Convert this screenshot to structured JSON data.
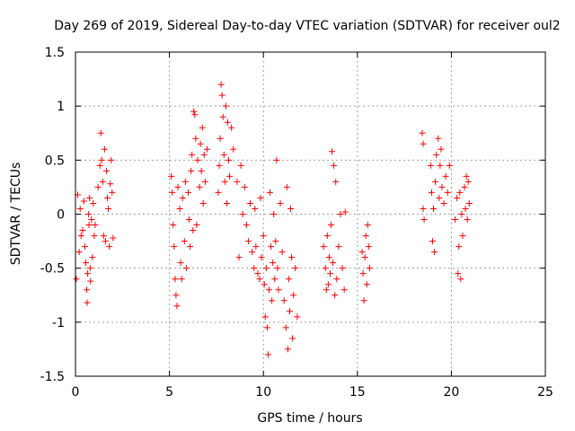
{
  "chart_data": {
    "type": "scatter",
    "title": "Day 269 of 2019, Sidereal Day-to-day VTEC variation (SDTVAR) for receiver oul2",
    "xlabel": "GPS time / hours",
    "ylabel": "SDTVAR / TECUs",
    "xlim": [
      0,
      25
    ],
    "ylim": [
      -1.5,
      1.5
    ],
    "xticks": [
      0,
      5,
      10,
      15,
      20,
      25
    ],
    "yticks": [
      -1.5,
      -1,
      -0.5,
      0,
      0.5,
      1,
      1.5
    ],
    "xtick_labels": [
      "0",
      "5",
      "10",
      "15",
      "20",
      "25"
    ],
    "ytick_labels": [
      "-1.5",
      "-1",
      "-0.5",
      "0",
      "0.5",
      "1",
      "1.5"
    ],
    "grid": true,
    "marker": "plus",
    "color": "#ff0000",
    "series": [
      {
        "name": "SDTVAR",
        "points": [
          [
            0.05,
            -0.6
          ],
          [
            0.12,
            0.18
          ],
          [
            0.2,
            -0.35
          ],
          [
            0.25,
            0.05
          ],
          [
            0.3,
            -0.2
          ],
          [
            0.38,
            -0.15
          ],
          [
            0.45,
            0.12
          ],
          [
            0.5,
            -0.3
          ],
          [
            0.55,
            -0.45
          ],
          [
            0.6,
            -0.7
          ],
          [
            0.62,
            -0.82
          ],
          [
            0.65,
            -0.55
          ],
          [
            0.7,
            0.0
          ],
          [
            0.72,
            -0.1
          ],
          [
            0.75,
            0.15
          ],
          [
            0.78,
            -0.5
          ],
          [
            0.8,
            -0.62
          ],
          [
            0.85,
            -0.05
          ],
          [
            0.9,
            -0.4
          ],
          [
            0.95,
            0.1
          ],
          [
            1.0,
            -0.2
          ],
          [
            1.05,
            -0.1
          ],
          [
            1.2,
            0.25
          ],
          [
            1.3,
            0.45
          ],
          [
            1.35,
            0.75
          ],
          [
            1.4,
            0.5
          ],
          [
            1.45,
            0.3
          ],
          [
            1.5,
            -0.2
          ],
          [
            1.55,
            0.6
          ],
          [
            1.6,
            -0.25
          ],
          [
            1.65,
            0.4
          ],
          [
            1.7,
            0.15
          ],
          [
            1.75,
            0.05
          ],
          [
            1.8,
            -0.3
          ],
          [
            1.85,
            0.28
          ],
          [
            1.9,
            0.5
          ],
          [
            1.95,
            0.2
          ],
          [
            2.0,
            -0.22
          ],
          [
            5.1,
            0.35
          ],
          [
            5.15,
            0.2
          ],
          [
            5.2,
            -0.1
          ],
          [
            5.25,
            -0.3
          ],
          [
            5.3,
            -0.6
          ],
          [
            5.35,
            -0.75
          ],
          [
            5.4,
            -0.85
          ],
          [
            5.45,
            0.25
          ],
          [
            5.55,
            0.05
          ],
          [
            5.6,
            -0.45
          ],
          [
            5.65,
            -0.6
          ],
          [
            5.7,
            0.15
          ],
          [
            5.8,
            -0.25
          ],
          [
            5.85,
            0.3
          ],
          [
            5.9,
            -0.5
          ],
          [
            6.0,
            0.2
          ],
          [
            6.05,
            -0.05
          ],
          [
            6.1,
            -0.3
          ],
          [
            6.15,
            0.4
          ],
          [
            6.2,
            0.55
          ],
          [
            6.25,
            -0.15
          ],
          [
            6.3,
            0.95
          ],
          [
            6.35,
            0.92
          ],
          [
            6.4,
            0.7
          ],
          [
            6.45,
            -0.1
          ],
          [
            6.5,
            0.5
          ],
          [
            6.6,
            0.25
          ],
          [
            6.65,
            0.65
          ],
          [
            6.7,
            0.4
          ],
          [
            6.75,
            0.8
          ],
          [
            6.8,
            0.1
          ],
          [
            6.85,
            0.55
          ],
          [
            6.9,
            0.3
          ],
          [
            7.0,
            0.6
          ],
          [
            7.6,
            0.2
          ],
          [
            7.65,
            0.45
          ],
          [
            7.7,
            0.7
          ],
          [
            7.75,
            1.2
          ],
          [
            7.8,
            1.1
          ],
          [
            7.85,
            0.9
          ],
          [
            7.9,
            0.55
          ],
          [
            7.95,
            0.3
          ],
          [
            8.0,
            1.0
          ],
          [
            8.05,
            0.1
          ],
          [
            8.1,
            0.85
          ],
          [
            8.15,
            0.5
          ],
          [
            8.2,
            0.35
          ],
          [
            8.3,
            0.8
          ],
          [
            8.4,
            0.6
          ],
          [
            8.6,
            0.3
          ],
          [
            8.7,
            -0.4
          ],
          [
            8.8,
            0.45
          ],
          [
            8.9,
            0.0
          ],
          [
            9.0,
            0.25
          ],
          [
            9.1,
            -0.1
          ],
          [
            9.2,
            -0.25
          ],
          [
            9.3,
            0.1
          ],
          [
            9.4,
            -0.35
          ],
          [
            9.5,
            -0.5
          ],
          [
            9.55,
            0.05
          ],
          [
            9.6,
            -0.3
          ],
          [
            9.7,
            -0.55
          ],
          [
            9.8,
            -0.6
          ],
          [
            9.85,
            0.15
          ],
          [
            9.9,
            -0.4
          ],
          [
            10.0,
            -0.2
          ],
          [
            10.05,
            -0.65
          ],
          [
            10.1,
            -0.95
          ],
          [
            10.15,
            -0.5
          ],
          [
            10.2,
            -1.05
          ],
          [
            10.25,
            -1.3
          ],
          [
            10.3,
            -0.7
          ],
          [
            10.35,
            0.2
          ],
          [
            10.4,
            -0.3
          ],
          [
            10.45,
            -0.8
          ],
          [
            10.5,
            -0.45
          ],
          [
            10.55,
            0.0
          ],
          [
            10.6,
            -0.6
          ],
          [
            10.65,
            -0.25
          ],
          [
            10.7,
            0.5
          ],
          [
            10.75,
            -0.5
          ],
          [
            10.8,
            -0.7
          ],
          [
            10.9,
            0.1
          ],
          [
            11.0,
            -0.35
          ],
          [
            11.1,
            -0.8
          ],
          [
            11.2,
            -1.05
          ],
          [
            11.25,
            0.25
          ],
          [
            11.3,
            -1.25
          ],
          [
            11.35,
            -0.6
          ],
          [
            11.4,
            -0.9
          ],
          [
            11.45,
            0.05
          ],
          [
            11.5,
            -0.4
          ],
          [
            11.55,
            -1.15
          ],
          [
            11.6,
            -0.75
          ],
          [
            11.7,
            -0.5
          ],
          [
            11.8,
            -0.95
          ],
          [
            13.2,
            -0.3
          ],
          [
            13.3,
            -0.5
          ],
          [
            13.35,
            -0.7
          ],
          [
            13.4,
            -0.2
          ],
          [
            13.45,
            -0.65
          ],
          [
            13.5,
            -0.4
          ],
          [
            13.55,
            -0.55
          ],
          [
            13.6,
            -0.1
          ],
          [
            13.65,
            0.58
          ],
          [
            13.7,
            -0.45
          ],
          [
            13.75,
            0.45
          ],
          [
            13.8,
            -0.75
          ],
          [
            13.85,
            0.3
          ],
          [
            13.9,
            -0.6
          ],
          [
            14.0,
            -0.3
          ],
          [
            14.1,
            0.0
          ],
          [
            14.2,
            -0.5
          ],
          [
            14.3,
            -0.7
          ],
          [
            14.35,
            0.02
          ],
          [
            15.25,
            -0.35
          ],
          [
            15.3,
            -0.55
          ],
          [
            15.35,
            -0.8
          ],
          [
            15.4,
            -0.4
          ],
          [
            15.45,
            -0.2
          ],
          [
            15.5,
            -0.65
          ],
          [
            15.55,
            -0.1
          ],
          [
            15.6,
            -0.3
          ],
          [
            15.65,
            -0.5
          ],
          [
            18.45,
            0.75
          ],
          [
            18.5,
            0.65
          ],
          [
            18.5,
            0.05
          ],
          [
            18.55,
            -0.05
          ],
          [
            18.9,
            0.45
          ],
          [
            18.95,
            0.2
          ],
          [
            19.0,
            -0.25
          ],
          [
            19.05,
            0.05
          ],
          [
            19.1,
            -0.35
          ],
          [
            19.15,
            0.3
          ],
          [
            19.2,
            0.55
          ],
          [
            19.3,
            0.7
          ],
          [
            19.35,
            0.15
          ],
          [
            19.4,
            0.45
          ],
          [
            19.45,
            0.6
          ],
          [
            19.5,
            0.25
          ],
          [
            19.6,
            0.1
          ],
          [
            19.7,
            0.35
          ],
          [
            19.8,
            0.2
          ],
          [
            19.9,
            0.45
          ],
          [
            20.2,
            -0.05
          ],
          [
            20.3,
            0.15
          ],
          [
            20.35,
            -0.55
          ],
          [
            20.4,
            -0.3
          ],
          [
            20.45,
            0.2
          ],
          [
            20.5,
            -0.6
          ],
          [
            20.55,
            0.0
          ],
          [
            20.6,
            -0.2
          ],
          [
            20.7,
            0.25
          ],
          [
            20.75,
            0.05
          ],
          [
            20.8,
            0.35
          ],
          [
            20.85,
            -0.05
          ],
          [
            20.9,
            0.3
          ],
          [
            20.95,
            0.1
          ]
        ]
      }
    ]
  }
}
